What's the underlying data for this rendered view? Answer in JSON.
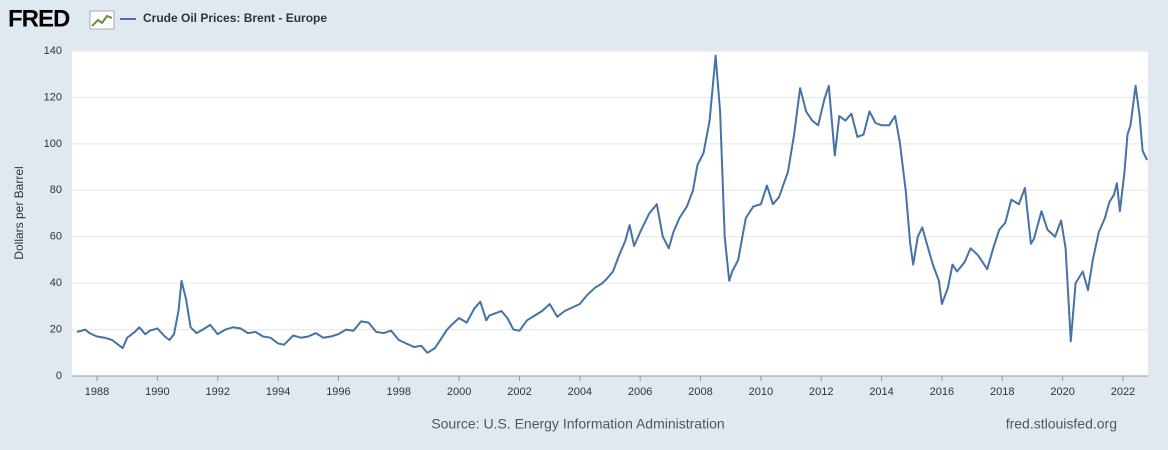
{
  "logo": "FRED",
  "source": "Source: U.S. Energy Information Administration",
  "site": "fred.stlouisfed.org",
  "chart_data": {
    "type": "line",
    "y_label": "Dollars per Barrel",
    "grid": true,
    "xlim": [
      1987.17,
      2022.83
    ],
    "ylim": [
      0,
      140
    ],
    "xticks": [
      1988,
      1990,
      1992,
      1994,
      1996,
      1998,
      2000,
      2002,
      2004,
      2006,
      2008,
      2010,
      2012,
      2014,
      2016,
      2018,
      2020,
      2022
    ],
    "yticks": [
      0,
      20,
      40,
      60,
      80,
      100,
      120,
      140
    ],
    "x": [
      1987.33,
      1987.5,
      1987.6,
      1987.75,
      1988.0,
      1988.25,
      1988.5,
      1988.75,
      1988.85,
      1989.0,
      1989.25,
      1989.4,
      1989.6,
      1989.75,
      1990.0,
      1990.25,
      1990.4,
      1990.55,
      1990.7,
      1990.8,
      1990.95,
      1991.1,
      1991.3,
      1991.5,
      1991.75,
      1992.0,
      1992.25,
      1992.5,
      1992.75,
      1993.0,
      1993.25,
      1993.5,
      1993.75,
      1994.0,
      1994.2,
      1994.5,
      1994.75,
      1995.0,
      1995.25,
      1995.5,
      1995.75,
      1996.0,
      1996.25,
      1996.5,
      1996.75,
      1997.0,
      1997.25,
      1997.5,
      1997.75,
      1998.0,
      1998.25,
      1998.5,
      1998.75,
      1998.95,
      1999.2,
      1999.4,
      1999.6,
      1999.75,
      2000.0,
      2000.25,
      2000.5,
      2000.7,
      2000.9,
      2001.0,
      2001.2,
      2001.4,
      2001.6,
      2001.8,
      2002.0,
      2002.25,
      2002.5,
      2002.75,
      2003.0,
      2003.25,
      2003.5,
      2003.75,
      2004.0,
      2004.25,
      2004.5,
      2004.75,
      2004.9,
      2005.1,
      2005.3,
      2005.5,
      2005.65,
      2005.8,
      2006.0,
      2006.3,
      2006.55,
      2006.75,
      2006.95,
      2007.1,
      2007.3,
      2007.55,
      2007.75,
      2007.9,
      2008.1,
      2008.3,
      2008.5,
      2008.65,
      2008.8,
      2008.95,
      2009.05,
      2009.25,
      2009.5,
      2009.75,
      2010.0,
      2010.2,
      2010.4,
      2010.6,
      2010.9,
      2011.1,
      2011.3,
      2011.5,
      2011.7,
      2011.9,
      2012.1,
      2012.25,
      2012.45,
      2012.6,
      2012.8,
      2013.0,
      2013.2,
      2013.4,
      2013.6,
      2013.8,
      2014.0,
      2014.25,
      2014.45,
      2014.6,
      2014.8,
      2014.95,
      2015.05,
      2015.2,
      2015.35,
      2015.5,
      2015.7,
      2015.9,
      2016.0,
      2016.2,
      2016.35,
      2016.5,
      2016.75,
      2016.95,
      2017.2,
      2017.5,
      2017.7,
      2017.9,
      2018.1,
      2018.3,
      2018.55,
      2018.75,
      2018.95,
      2019.05,
      2019.3,
      2019.5,
      2019.75,
      2019.95,
      2020.1,
      2020.27,
      2020.43,
      2020.67,
      2020.84,
      2021.0,
      2021.2,
      2021.4,
      2021.55,
      2021.7,
      2021.8,
      2021.9,
      2022.05,
      2022.15,
      2022.25,
      2022.42,
      2022.55,
      2022.65,
      2022.8
    ],
    "series": [
      {
        "name": "Crude Oil Prices: Brent - Europe",
        "color": "#4572a7",
        "values": [
          19,
          19.5,
          20,
          18.5,
          17,
          16.5,
          15.5,
          13,
          12,
          16.5,
          19,
          21,
          18,
          19.5,
          20.5,
          17,
          15.5,
          18,
          28,
          41,
          33,
          21,
          18.5,
          20,
          22,
          18,
          20,
          21,
          20.5,
          18.5,
          19,
          17,
          16.5,
          14,
          13.5,
          17.5,
          16.5,
          17,
          18.5,
          16.5,
          17,
          18,
          20,
          19.5,
          23.5,
          23,
          19,
          18.5,
          19.5,
          15.5,
          14,
          12.5,
          13,
          10,
          12,
          16,
          20,
          22,
          25,
          23,
          29,
          32,
          24,
          26,
          27,
          28,
          25,
          20,
          19.5,
          24,
          26,
          28,
          31,
          25.5,
          28,
          29.5,
          31,
          35,
          38,
          40,
          42,
          45,
          52,
          58,
          65,
          56,
          62,
          70,
          74,
          60,
          55,
          62,
          68,
          73,
          80,
          91,
          96,
          110,
          138,
          114,
          60,
          41,
          45,
          50,
          68,
          73,
          74,
          82,
          74,
          77,
          88,
          104,
          124,
          114,
          110,
          108,
          119,
          125,
          95,
          112,
          110,
          113,
          103,
          104,
          114,
          109,
          108,
          108,
          112,
          101,
          80,
          57,
          48,
          60,
          64,
          57,
          48,
          41,
          31,
          38,
          48,
          45,
          49,
          55,
          52,
          46,
          55,
          63,
          66,
          76,
          74,
          81,
          57,
          59,
          71,
          63,
          60,
          67,
          55,
          15,
          40,
          45,
          37,
          50,
          62,
          68,
          75,
          78,
          83,
          71,
          88,
          104,
          108,
          125,
          112,
          97,
          93
        ]
      }
    ]
  }
}
